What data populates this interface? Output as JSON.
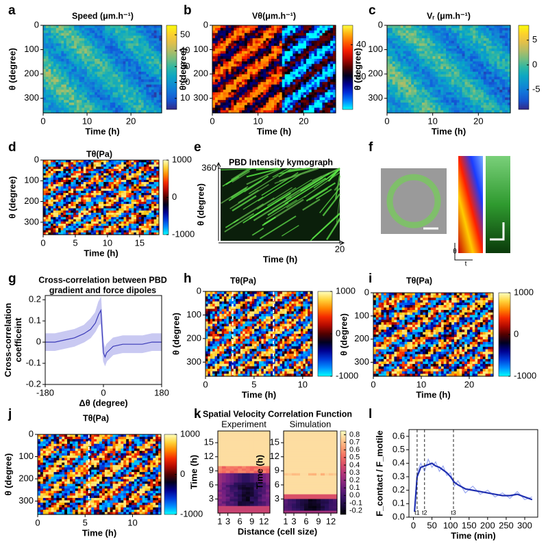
{
  "chart_data": [
    {
      "panel": "a",
      "type": "heatmap",
      "title": "Speed (μm.h⁻¹)",
      "x_label": "Time (h)",
      "y_label": "θ (degree)",
      "xlim": [
        0,
        27
      ],
      "xticks": [
        0,
        10,
        20
      ],
      "ylim": [
        0,
        360
      ],
      "yticks": [
        0,
        100,
        200,
        300
      ],
      "y_inverted": true,
      "colormap": "parula",
      "clim": [
        3,
        56
      ],
      "cticks": [
        10,
        20,
        30,
        40,
        50
      ]
    },
    {
      "panel": "b",
      "type": "heatmap",
      "title": "Vθ(μm.h⁻¹)",
      "x_label": "Time (h)",
      "y_label": "θ (degree)",
      "xlim": [
        0,
        27
      ],
      "xticks": [
        0,
        10,
        20
      ],
      "ylim": [
        0,
        360
      ],
      "yticks": [
        0,
        100,
        200,
        300
      ],
      "y_inverted": true,
      "colormap": "velocity",
      "clim": [
        0,
        52
      ],
      "cticks": [
        20,
        40
      ]
    },
    {
      "panel": "c",
      "type": "heatmap",
      "title": "Vᵣ (μm.h⁻¹)",
      "x_label": "Time (h)",
      "y_label": "θ (degree)",
      "xlim": [
        0,
        27
      ],
      "xticks": [
        0,
        10,
        20
      ],
      "ylim": [
        0,
        360
      ],
      "yticks": [
        0,
        100,
        200,
        300
      ],
      "y_inverted": true,
      "colormap": "parula",
      "clim": [
        -9,
        8
      ],
      "cticks": [
        -5,
        0,
        5
      ]
    },
    {
      "panel": "d",
      "type": "heatmap",
      "title": "Tθ(Pa)",
      "x_label": "Time (h)",
      "y_label": "θ (degree)",
      "xlim": [
        0,
        18
      ],
      "xticks": [
        0,
        5,
        10,
        15
      ],
      "ylim": [
        0,
        360
      ],
      "yticks": [
        0,
        100,
        200,
        300
      ],
      "y_inverted": true,
      "colormap": "stress",
      "clim": [
        -1000,
        1000
      ],
      "cticks": [
        -1000,
        0,
        1000
      ]
    },
    {
      "panel": "e",
      "type": "kymograph",
      "title": "PBD Intensity kymograph",
      "x_label": "Time (h)",
      "y_label": "θ (degree)",
      "xlim": [
        0,
        20
      ],
      "xticks": [
        20
      ],
      "ylim": [
        0,
        360
      ],
      "yticks": [
        360
      ]
    },
    {
      "panel": "f",
      "type": "image",
      "y_label": "θ",
      "x_label": "t"
    },
    {
      "panel": "g",
      "type": "line",
      "title": [
        "Cross-correlation between PBD",
        "gradient and force dipoles"
      ],
      "x_label": "Δθ (degree)",
      "y_label": [
        "Cross-correlation",
        "coefficeint"
      ],
      "xlim": [
        -180,
        180
      ],
      "xticks": [
        -180,
        0,
        180
      ],
      "ylim": [
        -0.2,
        0.22
      ],
      "yticks": [
        -0.2,
        -0.1,
        0,
        0.1,
        0.2
      ],
      "color": "#3a3ab8",
      "band_color": "#c9c9f2",
      "x": [
        -180,
        -150,
        -120,
        -90,
        -60,
        -40,
        -25,
        -15,
        -8,
        0,
        5,
        10,
        30,
        60,
        90,
        120,
        150,
        180
      ],
      "values": [
        0.0,
        0.0,
        0.01,
        0.02,
        0.04,
        0.06,
        0.09,
        0.13,
        0.15,
        -0.05,
        -0.07,
        -0.05,
        -0.02,
        -0.01,
        -0.01,
        -0.01,
        0.0,
        0.0
      ],
      "lower": [
        -0.04,
        -0.04,
        -0.03,
        -0.02,
        0.0,
        0.02,
        0.05,
        0.08,
        0.09,
        -0.09,
        -0.11,
        -0.09,
        -0.06,
        -0.05,
        -0.05,
        -0.05,
        -0.04,
        -0.04
      ],
      "upper": [
        0.04,
        0.04,
        0.05,
        0.06,
        0.08,
        0.11,
        0.14,
        0.19,
        0.21,
        0.0,
        -0.03,
        -0.01,
        0.02,
        0.03,
        0.03,
        0.03,
        0.04,
        0.04
      ]
    },
    {
      "panel": "h",
      "type": "heatmap",
      "title": "Tθ(Pa)",
      "x_label": "Time (h)",
      "y_label": "θ (degree)",
      "xlim": [
        0,
        11
      ],
      "xticks": [
        0,
        5,
        10
      ],
      "ylim": [
        0,
        360
      ],
      "yticks": [
        0,
        100,
        200,
        300
      ],
      "y_inverted": true,
      "colormap": "stress",
      "clim": [
        -1000,
        1000
      ],
      "cticks": [
        -1000,
        0,
        1000
      ],
      "dashed_lines": [
        2.8,
        7.0
      ]
    },
    {
      "panel": "i",
      "type": "heatmap",
      "title": "Tθ(Pa)",
      "x_label": "Time (h)",
      "y_label": "θ (degree)",
      "xlim": [
        0,
        25
      ],
      "xticks": [
        0,
        10,
        20
      ],
      "ylim": [
        0,
        360
      ],
      "yticks": [
        0,
        100,
        200,
        300
      ],
      "y_inverted": true,
      "colormap": "stress",
      "clim": [
        -1000,
        1000
      ],
      "cticks": [
        -1000,
        0,
        1000
      ]
    },
    {
      "panel": "j",
      "type": "heatmap",
      "title": "Tθ(Pa)",
      "x_label": "Time (h)",
      "y_label": "θ (degree)",
      "xlim": [
        0,
        13
      ],
      "xticks": [
        0,
        5,
        10
      ],
      "ylim": [
        0,
        360
      ],
      "yticks": [
        0,
        100,
        200,
        300
      ],
      "y_inverted": true,
      "colormap": "stress",
      "clim": [
        -1000,
        1000
      ],
      "cticks": [
        -1000,
        0,
        1000
      ],
      "dashed_lines": [
        5.4
      ]
    },
    {
      "panel": "k",
      "type": "heatmap_pair",
      "title": "Spatial Velocity Correlation Function",
      "subtitles": [
        "Experiment",
        "Simulation"
      ],
      "x_label": "Distance (cell size)",
      "y_label": "Time (h)",
      "xlim": [
        0.5,
        13.5
      ],
      "xticks": [
        1,
        3,
        6,
        9,
        12
      ],
      "ylim": [
        0,
        17.5
      ],
      "yticks": [
        3,
        6,
        9,
        12,
        15
      ],
      "colormap": "magma",
      "clim": [
        -0.25,
        0.85
      ],
      "cticks": [
        -0.2,
        -0.1,
        {
          "value": 0,
          "label": "0.0"
        },
        0.1,
        0.2,
        0.3,
        0.4,
        0.5,
        0.6,
        0.7,
        0.8
      ]
    },
    {
      "panel": "l",
      "type": "line",
      "x_label": "Time (min)",
      "y_label": "F_contact / F_motile",
      "xlim": [
        -12,
        335
      ],
      "xticks": [
        0,
        50,
        100,
        150,
        200,
        250,
        300
      ],
      "ylim": [
        0,
        0.65
      ],
      "yticks": [
        {
          "value": 0,
          "label": "0.0"
        },
        0.1,
        0.2,
        0.3,
        0.4,
        0.5,
        0.6
      ],
      "color": "#1f2fb0",
      "raw_color": "#9aa8f0",
      "x": [
        3,
        10,
        20,
        30,
        40,
        50,
        60,
        70,
        80,
        90,
        100,
        110,
        120,
        140,
        160,
        180,
        200,
        220,
        240,
        260,
        280,
        300,
        320
      ],
      "values": [
        0.04,
        0.3,
        0.37,
        0.38,
        0.39,
        0.4,
        0.38,
        0.37,
        0.35,
        0.33,
        0.3,
        0.26,
        0.24,
        0.21,
        0.2,
        0.19,
        0.18,
        0.17,
        0.16,
        0.16,
        0.17,
        0.15,
        0.13
      ],
      "raw": [
        0.06,
        0.33,
        0.4,
        0.34,
        0.43,
        0.37,
        0.41,
        0.34,
        0.38,
        0.31,
        0.33,
        0.23,
        0.27,
        0.18,
        0.23,
        0.17,
        0.2,
        0.15,
        0.18,
        0.14,
        0.19,
        0.13,
        0.15
      ],
      "markers": [
        {
          "value": 10,
          "label": "t1"
        },
        {
          "value": 30,
          "label": "t2"
        },
        {
          "value": 108,
          "label": "t3"
        }
      ]
    }
  ]
}
